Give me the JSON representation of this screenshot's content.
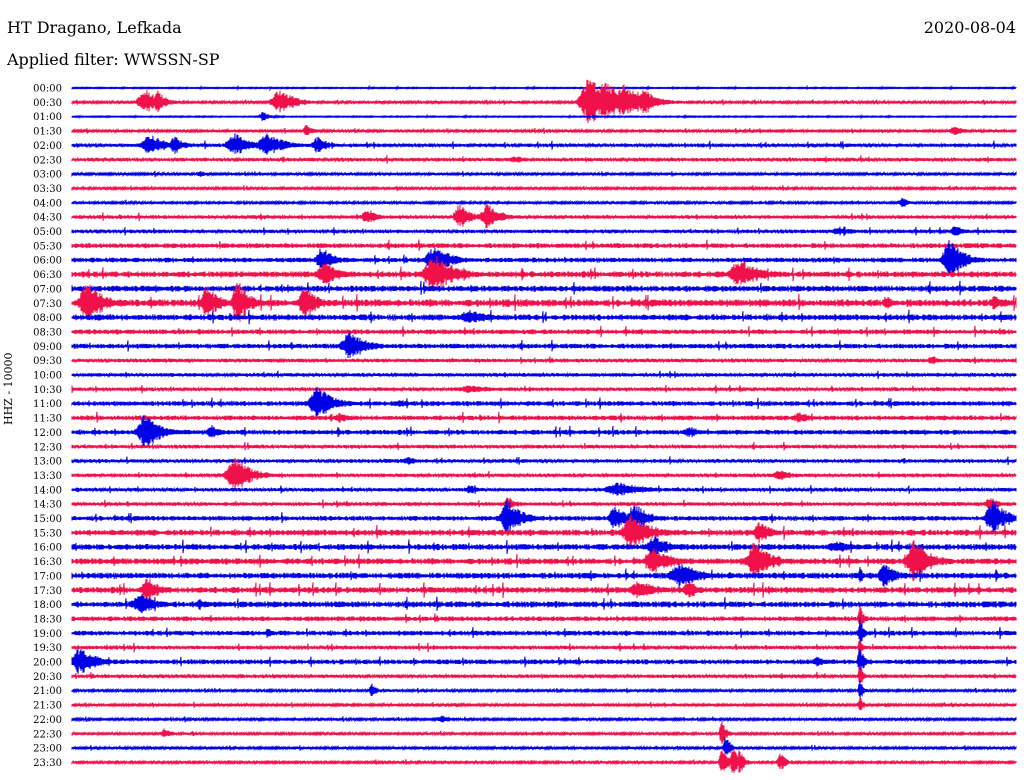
{
  "header": {
    "station": "HT Dragano, Lefkada",
    "date": "2020-08-04",
    "filter_label": "Applied filter: WWSSN-SP"
  },
  "chart_data": {
    "type": "line",
    "title": "HT Dragano, Lefkada",
    "subtitle": "Applied filter: WWSSN-SP",
    "ylabel": "HHZ - 10000",
    "date": "2020-08-04",
    "rows": [
      "00:00",
      "00:30",
      "01:00",
      "01:30",
      "02:00",
      "02:30",
      "03:00",
      "03:30",
      "04:00",
      "04:30",
      "05:00",
      "05:30",
      "06:00",
      "06:30",
      "07:00",
      "07:30",
      "08:00",
      "08:30",
      "09:00",
      "09:30",
      "10:00",
      "10:30",
      "11:00",
      "11:30",
      "12:00",
      "12:30",
      "13:00",
      "13:30",
      "14:00",
      "14:30",
      "15:00",
      "15:30",
      "16:00",
      "16:30",
      "17:00",
      "17:30",
      "18:00",
      "18:30",
      "19:00",
      "19:30",
      "20:00",
      "20:30",
      "21:00",
      "21:30",
      "22:00",
      "22:30",
      "23:00",
      "23:30"
    ],
    "series_colors": [
      "#0000e6",
      "#f0104a"
    ],
    "noise_level": [
      0.5,
      1,
      0.5,
      1,
      1.5,
      1.5,
      1,
      1,
      1,
      1.5,
      1.5,
      2,
      2,
      2.5,
      2.5,
      3,
      2.5,
      2,
      2,
      1.5,
      1.5,
      1.5,
      2,
      2,
      2,
      1.5,
      1.5,
      1.5,
      1.5,
      1.5,
      2,
      2.5,
      2.5,
      2.5,
      2.5,
      2.5,
      2.5,
      2,
      2,
      1.5,
      2,
      1.5,
      1,
      1,
      1,
      1,
      1,
      1
    ],
    "events": [
      {
        "row": 1,
        "x": 145,
        "amp": 14,
        "w": 12
      },
      {
        "row": 1,
        "x": 158,
        "amp": 12,
        "w": 8
      },
      {
        "row": 1,
        "x": 280,
        "amp": 13,
        "w": 14
      },
      {
        "row": 1,
        "x": 590,
        "amp": 26,
        "w": 16
      },
      {
        "row": 1,
        "x": 605,
        "amp": 22,
        "w": 18
      },
      {
        "row": 1,
        "x": 625,
        "amp": 18,
        "w": 20
      },
      {
        "row": 1,
        "x": 645,
        "amp": 14,
        "w": 10
      },
      {
        "row": 2,
        "x": 263,
        "amp": 6,
        "w": 6
      },
      {
        "row": 3,
        "x": 307,
        "amp": 7,
        "w": 6
      },
      {
        "row": 3,
        "x": 955,
        "amp": 5,
        "w": 10
      },
      {
        "row": 4,
        "x": 150,
        "amp": 12,
        "w": 14
      },
      {
        "row": 4,
        "x": 175,
        "amp": 10,
        "w": 8
      },
      {
        "row": 4,
        "x": 235,
        "amp": 13,
        "w": 14
      },
      {
        "row": 4,
        "x": 268,
        "amp": 12,
        "w": 16
      },
      {
        "row": 4,
        "x": 318,
        "amp": 9,
        "w": 10
      },
      {
        "row": 5,
        "x": 515,
        "amp": 4,
        "w": 12
      },
      {
        "row": 6,
        "x": 200,
        "amp": 4,
        "w": 6
      },
      {
        "row": 8,
        "x": 903,
        "amp": 6,
        "w": 6
      },
      {
        "row": 9,
        "x": 367,
        "amp": 10,
        "w": 8
      },
      {
        "row": 9,
        "x": 460,
        "amp": 14,
        "w": 10
      },
      {
        "row": 9,
        "x": 488,
        "amp": 14,
        "w": 12
      },
      {
        "row": 10,
        "x": 840,
        "amp": 5,
        "w": 14
      },
      {
        "row": 10,
        "x": 955,
        "amp": 8,
        "w": 6
      },
      {
        "row": 12,
        "x": 322,
        "amp": 14,
        "w": 10
      },
      {
        "row": 12,
        "x": 435,
        "amp": 14,
        "w": 16
      },
      {
        "row": 12,
        "x": 950,
        "amp": 22,
        "w": 12
      },
      {
        "row": 13,
        "x": 325,
        "amp": 14,
        "w": 12
      },
      {
        "row": 13,
        "x": 435,
        "amp": 20,
        "w": 18
      },
      {
        "row": 13,
        "x": 740,
        "amp": 16,
        "w": 18
      },
      {
        "row": 15,
        "x": 88,
        "amp": 22,
        "w": 14
      },
      {
        "row": 15,
        "x": 207,
        "amp": 20,
        "w": 10
      },
      {
        "row": 15,
        "x": 238,
        "amp": 24,
        "w": 10
      },
      {
        "row": 15,
        "x": 305,
        "amp": 20,
        "w": 10
      },
      {
        "row": 15,
        "x": 888,
        "amp": 8,
        "w": 6
      },
      {
        "row": 15,
        "x": 995,
        "amp": 8,
        "w": 8
      },
      {
        "row": 16,
        "x": 470,
        "amp": 8,
        "w": 18
      },
      {
        "row": 18,
        "x": 350,
        "amp": 16,
        "w": 14
      },
      {
        "row": 19,
        "x": 932,
        "amp": 6,
        "w": 6
      },
      {
        "row": 21,
        "x": 470,
        "amp": 5,
        "w": 20
      },
      {
        "row": 22,
        "x": 318,
        "amp": 18,
        "w": 14
      },
      {
        "row": 22,
        "x": 400,
        "amp": 5,
        "w": 6
      },
      {
        "row": 23,
        "x": 340,
        "amp": 6,
        "w": 8
      },
      {
        "row": 23,
        "x": 800,
        "amp": 6,
        "w": 12
      },
      {
        "row": 24,
        "x": 145,
        "amp": 18,
        "w": 14
      },
      {
        "row": 24,
        "x": 212,
        "amp": 8,
        "w": 8
      },
      {
        "row": 24,
        "x": 690,
        "amp": 6,
        "w": 12
      },
      {
        "row": 26,
        "x": 408,
        "amp": 5,
        "w": 8
      },
      {
        "row": 27,
        "x": 235,
        "amp": 20,
        "w": 14
      },
      {
        "row": 27,
        "x": 780,
        "amp": 6,
        "w": 12
      },
      {
        "row": 28,
        "x": 470,
        "amp": 5,
        "w": 8
      },
      {
        "row": 28,
        "x": 620,
        "amp": 8,
        "w": 24
      },
      {
        "row": 29,
        "x": 508,
        "amp": 8,
        "w": 8
      },
      {
        "row": 29,
        "x": 990,
        "amp": 8,
        "w": 8
      },
      {
        "row": 30,
        "x": 508,
        "amp": 20,
        "w": 12
      },
      {
        "row": 30,
        "x": 615,
        "amp": 14,
        "w": 10
      },
      {
        "row": 30,
        "x": 635,
        "amp": 16,
        "w": 12
      },
      {
        "row": 30,
        "x": 993,
        "amp": 20,
        "w": 12
      },
      {
        "row": 31,
        "x": 633,
        "amp": 20,
        "w": 16
      },
      {
        "row": 31,
        "x": 760,
        "amp": 12,
        "w": 10
      },
      {
        "row": 32,
        "x": 655,
        "amp": 12,
        "w": 14
      },
      {
        "row": 32,
        "x": 838,
        "amp": 6,
        "w": 20
      },
      {
        "row": 33,
        "x": 655,
        "amp": 14,
        "w": 16
      },
      {
        "row": 33,
        "x": 755,
        "amp": 20,
        "w": 14
      },
      {
        "row": 33,
        "x": 915,
        "amp": 22,
        "w": 14
      },
      {
        "row": 34,
        "x": 680,
        "amp": 14,
        "w": 18
      },
      {
        "row": 34,
        "x": 885,
        "amp": 12,
        "w": 12
      },
      {
        "row": 34,
        "x": 860,
        "amp": 10,
        "w": 3
      },
      {
        "row": 35,
        "x": 148,
        "amp": 14,
        "w": 10
      },
      {
        "row": 35,
        "x": 640,
        "amp": 10,
        "w": 18
      },
      {
        "row": 35,
        "x": 688,
        "amp": 12,
        "w": 8
      },
      {
        "row": 36,
        "x": 140,
        "amp": 12,
        "w": 14
      },
      {
        "row": 36,
        "x": 200,
        "amp": 6,
        "w": 8
      },
      {
        "row": 37,
        "x": 860,
        "amp": 16,
        "w": 3
      },
      {
        "row": 38,
        "x": 268,
        "amp": 5,
        "w": 6
      },
      {
        "row": 38,
        "x": 860,
        "amp": 18,
        "w": 3
      },
      {
        "row": 39,
        "x": 860,
        "amp": 10,
        "w": 3
      },
      {
        "row": 40,
        "x": 80,
        "amp": 14,
        "w": 16
      },
      {
        "row": 40,
        "x": 818,
        "amp": 6,
        "w": 8
      },
      {
        "row": 40,
        "x": 860,
        "amp": 16,
        "w": 4
      },
      {
        "row": 41,
        "x": 860,
        "amp": 14,
        "w": 3
      },
      {
        "row": 42,
        "x": 372,
        "amp": 8,
        "w": 4
      },
      {
        "row": 42,
        "x": 860,
        "amp": 12,
        "w": 3
      },
      {
        "row": 43,
        "x": 860,
        "amp": 10,
        "w": 3
      },
      {
        "row": 44,
        "x": 443,
        "amp": 4,
        "w": 12
      },
      {
        "row": 45,
        "x": 165,
        "amp": 6,
        "w": 6
      },
      {
        "row": 45,
        "x": 722,
        "amp": 14,
        "w": 4
      },
      {
        "row": 46,
        "x": 726,
        "amp": 14,
        "w": 4
      },
      {
        "row": 47,
        "x": 722,
        "amp": 22,
        "w": 4
      },
      {
        "row": 47,
        "x": 733,
        "amp": 20,
        "w": 4
      },
      {
        "row": 47,
        "x": 740,
        "amp": 14,
        "w": 4
      },
      {
        "row": 47,
        "x": 780,
        "amp": 14,
        "w": 4
      }
    ]
  }
}
